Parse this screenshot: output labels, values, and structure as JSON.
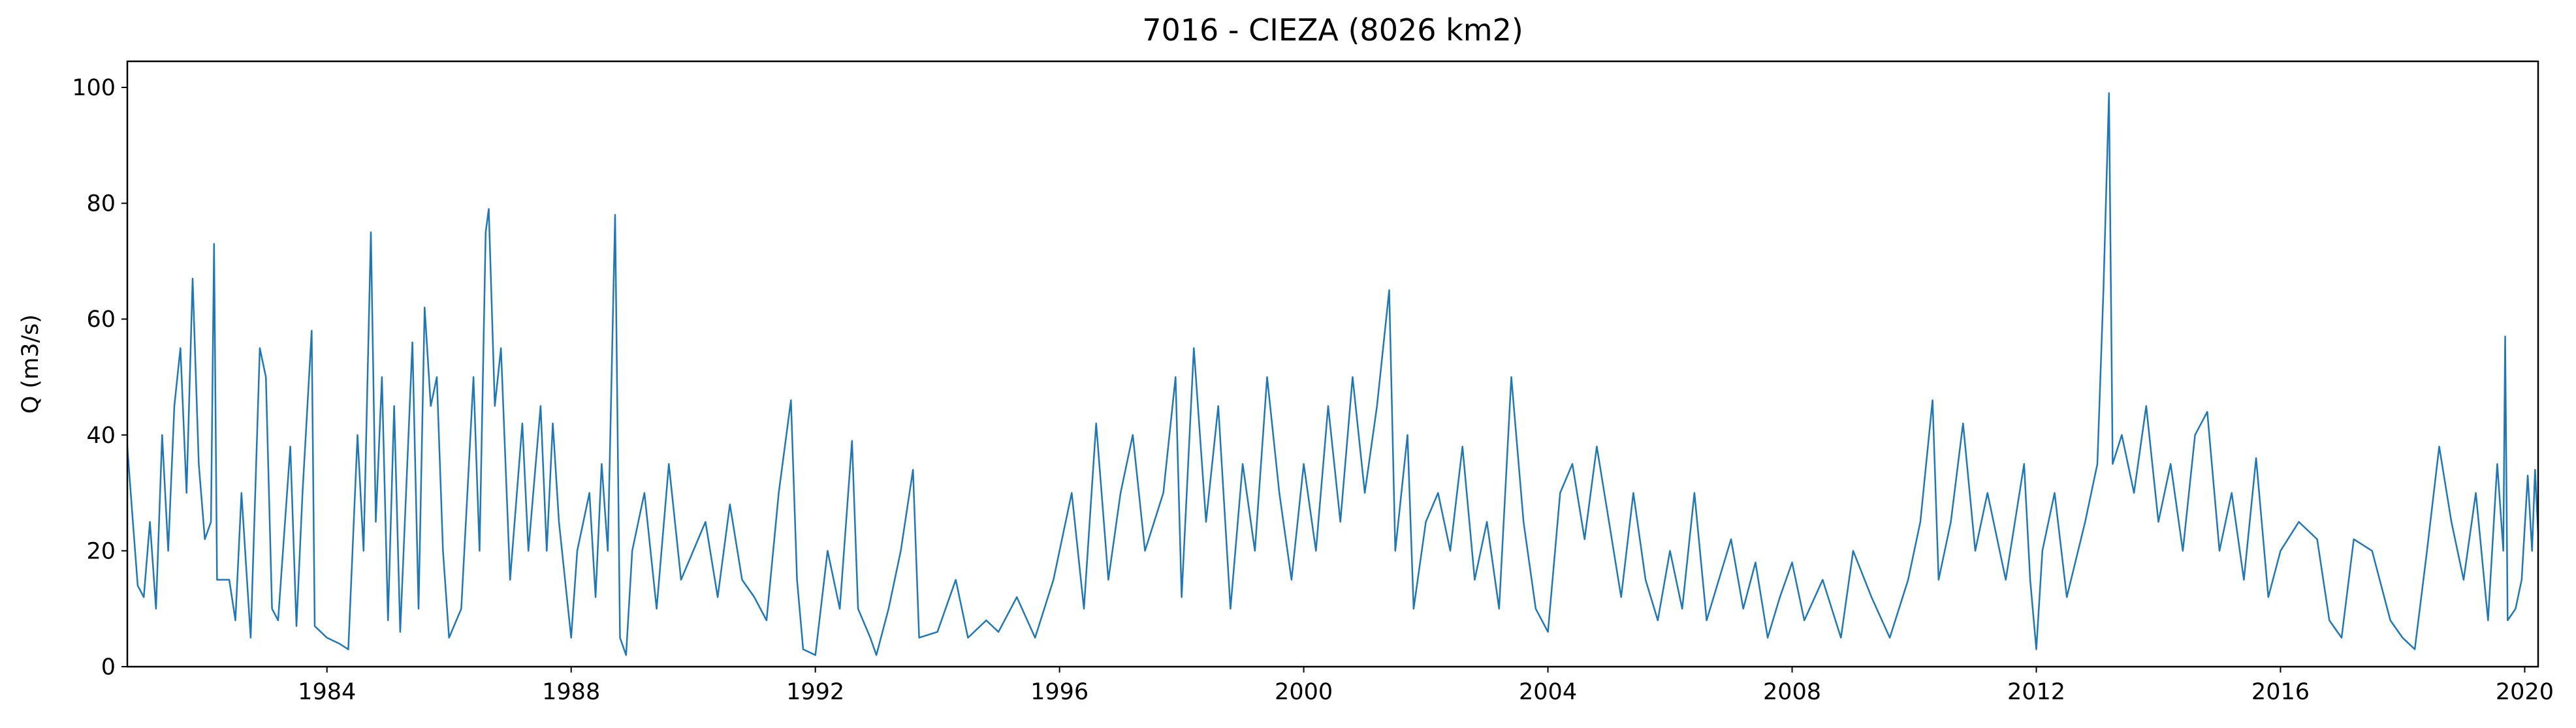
{
  "chart_data": {
    "type": "line",
    "title": "7016 - CIEZA (8026 km2)",
    "ylabel": "Q (m3/s)",
    "color": "#1f77b4",
    "x": [
      1980.73,
      1980.8,
      1980.9,
      1981.0,
      1981.1,
      1981.2,
      1981.3,
      1981.4,
      1981.5,
      1981.6,
      1981.7,
      1981.8,
      1981.9,
      1982.0,
      1982.1,
      1982.15,
      1982.2,
      1982.4,
      1982.5,
      1982.6,
      1982.75,
      1982.9,
      1983.0,
      1983.1,
      1983.2,
      1983.4,
      1983.5,
      1983.6,
      1983.75,
      1983.8,
      1984.0,
      1984.2,
      1984.35,
      1984.5,
      1984.6,
      1984.72,
      1984.8,
      1984.9,
      1985.0,
      1985.1,
      1985.2,
      1985.4,
      1985.5,
      1985.6,
      1985.7,
      1985.8,
      1985.9,
      1986.0,
      1986.2,
      1986.3,
      1986.4,
      1986.5,
      1986.6,
      1986.65,
      1986.75,
      1986.85,
      1987.0,
      1987.2,
      1987.3,
      1987.5,
      1987.6,
      1987.7,
      1987.8,
      1988.0,
      1988.1,
      1988.3,
      1988.4,
      1988.5,
      1988.6,
      1988.72,
      1988.8,
      1988.9,
      1989.0,
      1989.2,
      1989.4,
      1989.6,
      1989.8,
      1990.0,
      1990.2,
      1990.4,
      1990.6,
      1990.8,
      1991.0,
      1991.2,
      1991.4,
      1991.6,
      1991.7,
      1991.8,
      1992.0,
      1992.2,
      1992.4,
      1992.6,
      1992.7,
      1992.9,
      1993.0,
      1993.2,
      1993.4,
      1993.6,
      1993.7,
      1994.0,
      1994.3,
      1994.5,
      1994.8,
      1995.0,
      1995.3,
      1995.6,
      1995.9,
      1996.2,
      1996.4,
      1996.6,
      1996.8,
      1997.0,
      1997.2,
      1997.4,
      1997.7,
      1997.9,
      1998.0,
      1998.2,
      1998.4,
      1998.6,
      1998.8,
      1999.0,
      1999.2,
      1999.4,
      1999.6,
      1999.8,
      2000.0,
      2000.2,
      2000.4,
      2000.6,
      2000.8,
      2001.0,
      2001.2,
      2001.4,
      2001.5,
      2001.7,
      2001.8,
      2002.0,
      2002.2,
      2002.4,
      2002.6,
      2002.8,
      2003.0,
      2003.2,
      2003.4,
      2003.6,
      2003.8,
      2004.0,
      2004.2,
      2004.4,
      2004.6,
      2004.8,
      2005.0,
      2005.2,
      2005.4,
      2005.6,
      2005.8,
      2006.0,
      2006.2,
      2006.4,
      2006.6,
      2006.8,
      2007.0,
      2007.2,
      2007.4,
      2007.6,
      2007.8,
      2008.0,
      2008.2,
      2008.5,
      2008.8,
      2009.0,
      2009.3,
      2009.6,
      2009.9,
      2010.1,
      2010.3,
      2010.4,
      2010.6,
      2010.8,
      2011.0,
      2011.2,
      2011.5,
      2011.8,
      2011.9,
      2012.0,
      2012.1,
      2012.3,
      2012.5,
      2012.8,
      2013.0,
      2013.1,
      2013.19,
      2013.25,
      2013.4,
      2013.6,
      2013.8,
      2014.0,
      2014.2,
      2014.4,
      2014.6,
      2014.8,
      2015.0,
      2015.2,
      2015.4,
      2015.6,
      2015.8,
      2016.0,
      2016.3,
      2016.6,
      2016.8,
      2017.0,
      2017.2,
      2017.5,
      2017.8,
      2018.0,
      2018.2,
      2018.4,
      2018.6,
      2018.8,
      2019.0,
      2019.2,
      2019.4,
      2019.55,
      2019.65,
      2019.68,
      2019.72,
      2019.85,
      2019.95,
      2020.05,
      2020.12,
      2020.17,
      2020.22
    ],
    "values": [
      38,
      28,
      14,
      12,
      25,
      10,
      40,
      20,
      45,
      55,
      30,
      67,
      35,
      22,
      25,
      73,
      15,
      15,
      8,
      30,
      5,
      55,
      50,
      10,
      8,
      38,
      7,
      30,
      58,
      7,
      5,
      4,
      3,
      40,
      20,
      75,
      25,
      50,
      8,
      45,
      6,
      56,
      10,
      62,
      45,
      50,
      20,
      5,
      10,
      30,
      50,
      20,
      75,
      79,
      45,
      55,
      15,
      42,
      20,
      45,
      20,
      42,
      25,
      5,
      20,
      30,
      12,
      35,
      20,
      78,
      5,
      2,
      20,
      30,
      10,
      35,
      15,
      20,
      25,
      12,
      28,
      15,
      12,
      8,
      30,
      46,
      15,
      3,
      2,
      20,
      10,
      39,
      10,
      5,
      2,
      10,
      20,
      34,
      5,
      6,
      15,
      5,
      8,
      6,
      12,
      5,
      15,
      30,
      10,
      42,
      15,
      30,
      40,
      20,
      30,
      50,
      12,
      55,
      25,
      45,
      10,
      35,
      20,
      50,
      30,
      15,
      35,
      20,
      45,
      25,
      50,
      30,
      45,
      65,
      20,
      40,
      10,
      25,
      30,
      20,
      38,
      15,
      25,
      10,
      50,
      25,
      10,
      6,
      30,
      35,
      22,
      38,
      25,
      12,
      30,
      15,
      8,
      20,
      10,
      30,
      8,
      15,
      22,
      10,
      18,
      5,
      12,
      18,
      8,
      15,
      5,
      20,
      12,
      5,
      15,
      25,
      46,
      15,
      25,
      42,
      20,
      30,
      15,
      35,
      15,
      3,
      20,
      30,
      12,
      25,
      35,
      65,
      99,
      35,
      40,
      30,
      45,
      25,
      35,
      20,
      40,
      44,
      20,
      30,
      15,
      36,
      12,
      20,
      25,
      22,
      8,
      5,
      22,
      20,
      8,
      5,
      3,
      20,
      38,
      25,
      15,
      30,
      8,
      35,
      20,
      57,
      8,
      10,
      15,
      33,
      20,
      34,
      23
    ],
    "xlim": [
      1980.73,
      2020.22
    ],
    "xticks": [
      1984,
      1988,
      1992,
      1996,
      2000,
      2004,
      2008,
      2012,
      2016,
      2020
    ],
    "ylim": [
      0,
      104.5
    ],
    "yticks": [
      0,
      20,
      40,
      60,
      80,
      100
    ]
  }
}
